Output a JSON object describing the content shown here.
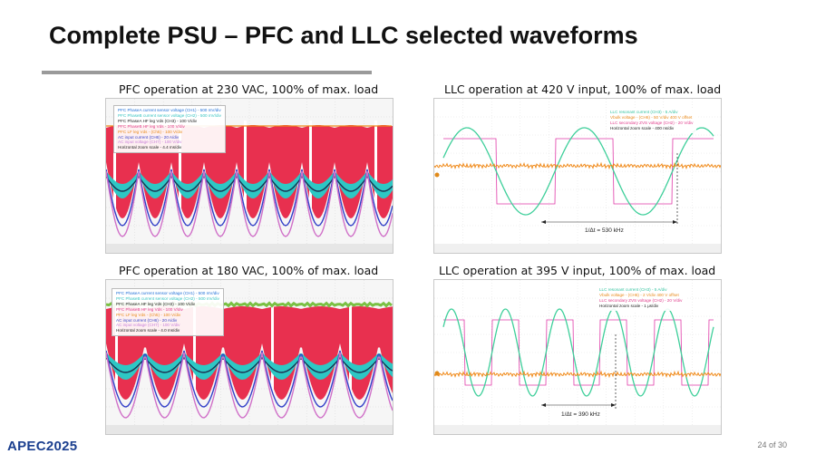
{
  "title": "Complete PSU – PFC and LLC selected waveforms",
  "panels": {
    "pfc230": {
      "caption": "PFC operation at 230 VAC, 100% of max. load",
      "legend": [
        {
          "text": "PFC PhaseA current sensor voltage (CH1) - 500 mV/div",
          "color": "#1e6fd8"
        },
        {
          "text": "PFC PhaseB current sensor voltage (CH2) - 500 mV/div",
          "color": "#35c3c0"
        },
        {
          "text": "PFC PhaseA HF leg Vds (CH3) - 100 V/div",
          "color": "#1a1a1a"
        },
        {
          "text": "PFC PhaseB HF leg Vds - 100 V/div",
          "color": "#e03a8a"
        },
        {
          "text": "PFC LF leg Vds - (Ch5) - 100 V/div",
          "color": "#e88a1a"
        },
        {
          "text": "AC input current (CH6) - 20 A/div",
          "color": "#3a46c8"
        },
        {
          "text": "AC input voltage (CH7) - 100 V/div",
          "color": "#c880d8"
        },
        {
          "text": "Horizontal zoom scale - 4.4 ms/div",
          "color": "#1a1a1a"
        }
      ]
    },
    "llc420": {
      "caption": "LLC operation at 420 V input, 100% of max. load",
      "legend": [
        {
          "text": "LLC resonant current (CH3) - 5 A/div",
          "color": "#35c3a0"
        },
        {
          "text": "Vbulk voltage - (CH6) - 50 V/div 400 V offset",
          "color": "#e88a1a"
        },
        {
          "text": "LLC secondary ZVS voltage (CH2) - 20 V/div",
          "color": "#e03a8a"
        },
        {
          "text": "Horizontal zoom scale - 400 ns/div",
          "color": "#1a1a1a"
        }
      ],
      "measurement": "1/Δt = 530 kHz"
    },
    "pfc180": {
      "caption": "PFC operation at 180 VAC, 100% of max. load",
      "legend": [
        {
          "text": "PFC PhaseA current sensor voltage (CH1) - 500 mV/div",
          "color": "#1e6fd8"
        },
        {
          "text": "PFC PhaseB current sensor voltage (CH2) - 500 mV/div",
          "color": "#35c3c0"
        },
        {
          "text": "PFC PhaseA HF leg Vds (CH3) - 100 V/div",
          "color": "#1a1a1a"
        },
        {
          "text": "PFC PhaseB HF leg Vds - 100 V/div",
          "color": "#e03a8a"
        },
        {
          "text": "PFC LF leg Vds - (Ch5) - 100 V/div",
          "color": "#e88a1a"
        },
        {
          "text": "AC input current (CH6) - 20 A/div",
          "color": "#3a46c8"
        },
        {
          "text": "AC input voltage (CH7) - 100 V/div",
          "color": "#c880d8"
        },
        {
          "text": "Horizontal zoom scale - 4.0 ms/div",
          "color": "#1a1a1a"
        }
      ]
    },
    "llc395": {
      "caption": "LLC operation at 395 V input, 100% of max. load",
      "legend": [
        {
          "text": "LLC resonant current (CH3) - 5 A/div",
          "color": "#35c3a0"
        },
        {
          "text": "Vbulk voltage - (CH6) - 2 V/div 400 V offset",
          "color": "#e88a1a"
        },
        {
          "text": "LLC secondary ZVS voltage (CH2) - 20 V/div",
          "color": "#e03a8a"
        },
        {
          "text": "Horizontal zoom scale - 1 μs/div",
          "color": "#1a1a1a"
        }
      ],
      "measurement": "1/Δt = 390 kHz"
    }
  },
  "footer": {
    "brand": "APEC2025",
    "page": "24 of 30"
  },
  "colors": {
    "pfc_band": "#e8304f",
    "pfc_cyan": "#2ec7c4",
    "pfc_blue": "#3340c8",
    "pfc_pink": "#d070c8",
    "pfc_green": "#7ac043",
    "llc_green": "#3ecf9a",
    "llc_orange": "#f08a1a",
    "llc_pink": "#e03aa8"
  }
}
